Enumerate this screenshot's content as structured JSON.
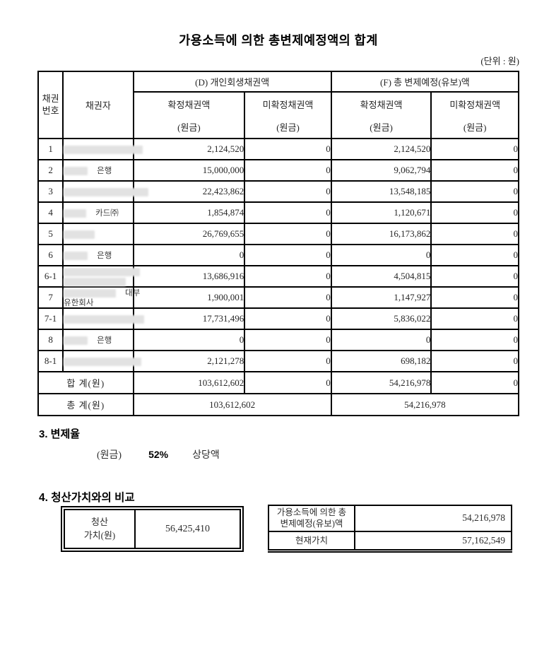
{
  "page": {
    "title": "가용소득에 의한 총변제예정액의 합계",
    "unit_label": "(단위 : 원)"
  },
  "table": {
    "headers": {
      "col_no_line1": "채권",
      "col_no_line2": "번호",
      "col_creditor": "채권자",
      "group_d": "(D) 개인회생채권액",
      "group_f": "(F) 총 변제예정(유보)액",
      "sub_confirmed": "확정채권액",
      "sub_unconfirmed": "미확정채권액",
      "sub_principal": "(원금)"
    },
    "rows": [
      {
        "no": "1",
        "creditor": [
          [
            {
              "redact": 112
            }
          ]
        ],
        "d_confirmed": "2,124,520",
        "d_unconfirmed": "0",
        "f_confirmed": "2,124,520",
        "f_unconfirmed": "0"
      },
      {
        "no": "2",
        "creditor": [
          [
            {
              "redact": 34
            },
            {
              "text": "은행"
            }
          ]
        ],
        "d_confirmed": "15,000,000",
        "d_unconfirmed": "0",
        "f_confirmed": "9,062,794",
        "f_unconfirmed": "0"
      },
      {
        "no": "3",
        "creditor": [
          [
            {
              "redact": 120
            }
          ]
        ],
        "d_confirmed": "22,423,862",
        "d_unconfirmed": "0",
        "f_confirmed": "13,548,185",
        "f_unconfirmed": "0"
      },
      {
        "no": "4",
        "creditor": [
          [
            {
              "redact": 32
            },
            {
              "text": "카드㈜"
            }
          ]
        ],
        "d_confirmed": "1,854,874",
        "d_unconfirmed": "0",
        "f_confirmed": "1,120,671",
        "f_unconfirmed": "0"
      },
      {
        "no": "5",
        "creditor": [
          [
            {
              "redact": 44
            }
          ]
        ],
        "d_confirmed": "26,769,655",
        "d_unconfirmed": "0",
        "f_confirmed": "16,173,862",
        "f_unconfirmed": "0"
      },
      {
        "no": "6",
        "creditor": [
          [
            {
              "redact": 34
            },
            {
              "text": "은행"
            }
          ]
        ],
        "d_confirmed": "0",
        "d_unconfirmed": "0",
        "f_confirmed": "0",
        "f_unconfirmed": "0"
      },
      {
        "no": "6-1",
        "creditor": [
          [
            {
              "redact": 108
            }
          ],
          [
            {
              "redact": 88
            }
          ]
        ],
        "d_confirmed": "13,686,916",
        "d_unconfirmed": "0",
        "f_confirmed": "4,504,815",
        "f_unconfirmed": "0"
      },
      {
        "no": "7",
        "creditor": [
          [
            {
              "redact": 74
            },
            {
              "text": "대부"
            }
          ],
          [
            {
              "text": "유한회사"
            }
          ]
        ],
        "d_confirmed": "1,900,001",
        "d_unconfirmed": "0",
        "f_confirmed": "1,147,927",
        "f_unconfirmed": "0"
      },
      {
        "no": "7-1",
        "creditor": [
          [
            {
              "redact": 114
            }
          ]
        ],
        "d_confirmed": "17,731,496",
        "d_unconfirmed": "0",
        "f_confirmed": "5,836,022",
        "f_unconfirmed": "0"
      },
      {
        "no": "8",
        "creditor": [
          [
            {
              "redact": 34
            },
            {
              "text": "은행"
            }
          ]
        ],
        "d_confirmed": "0",
        "d_unconfirmed": "0",
        "f_confirmed": "0",
        "f_unconfirmed": "0"
      },
      {
        "no": "8-1",
        "creditor": [
          [
            {
              "redact": 110
            }
          ]
        ],
        "d_confirmed": "2,121,278",
        "d_unconfirmed": "0",
        "f_confirmed": "698,182",
        "f_unconfirmed": "0"
      }
    ],
    "subtotal": {
      "label": "합  계(원)",
      "d_confirmed": "103,612,602",
      "d_unconfirmed": "0",
      "f_confirmed": "54,216,978",
      "f_unconfirmed": "0"
    },
    "grand_total": {
      "label": "총  계(원)",
      "d_total": "103,612,602",
      "f_total": "54,216,978"
    }
  },
  "section3": {
    "heading": "3. 변제율",
    "principal_label": "(원금)",
    "rate": "52%",
    "suffix": "상당액"
  },
  "section4": {
    "heading": "4. 청산가치와의 비교",
    "liquidation": {
      "label_line1": "청산",
      "label_line2": "가치(원)",
      "value": "56,425,410"
    },
    "comparison": {
      "row1_label_line1": "가용소득에 의한 총",
      "row1_label_line2": "변제예정(유보)액",
      "row1_value": "54,216,978",
      "row2_label": "현재가치",
      "row2_value": "57,162,549"
    }
  }
}
